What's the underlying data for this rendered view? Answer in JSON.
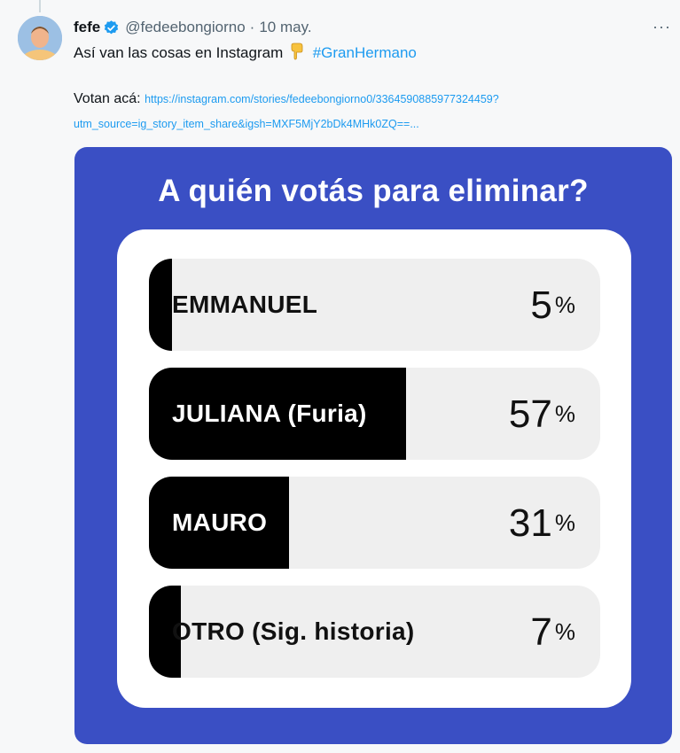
{
  "tweet": {
    "display_name": "fefe",
    "handle": "@fedeebongiorno",
    "separator": "·",
    "date": "10 may.",
    "more_label": "···",
    "text": "Así van las cosas en Instagram",
    "hashtag": "#GranHermano",
    "vote_prefix": "Votan acá:",
    "link_line1": "https://instagram.com/stories/fedeebongiorno0/3364590885977324459?",
    "link_line2": "utm_source=ig_story_item_share&igsh=MXF5MjY2bDk4MHk0ZQ==..."
  },
  "poll": {
    "title": "A quién votás para eliminar?",
    "percent_symbol": "%",
    "options": [
      {
        "label": "EMMANUEL",
        "percent": "5",
        "fill_fraction": 0.05
      },
      {
        "label": "JULIANA (Furia)",
        "percent": "57",
        "fill_fraction": 0.57
      },
      {
        "label": "MAURO",
        "percent": "31",
        "fill_fraction": 0.31
      },
      {
        "label": "OTRO (Sig. historia)",
        "percent": "7",
        "fill_fraction": 0.07
      }
    ]
  },
  "colors": {
    "media_background": "#3a4fc4",
    "bar_fill": "#000000",
    "bar_track": "#efefef",
    "link": "#1d9bf0",
    "verified": "#1d9bf0"
  },
  "icons": {
    "verified": "verified-badge-icon",
    "pointer": "pointing-down-emoji-icon",
    "more": "more-options-icon"
  }
}
